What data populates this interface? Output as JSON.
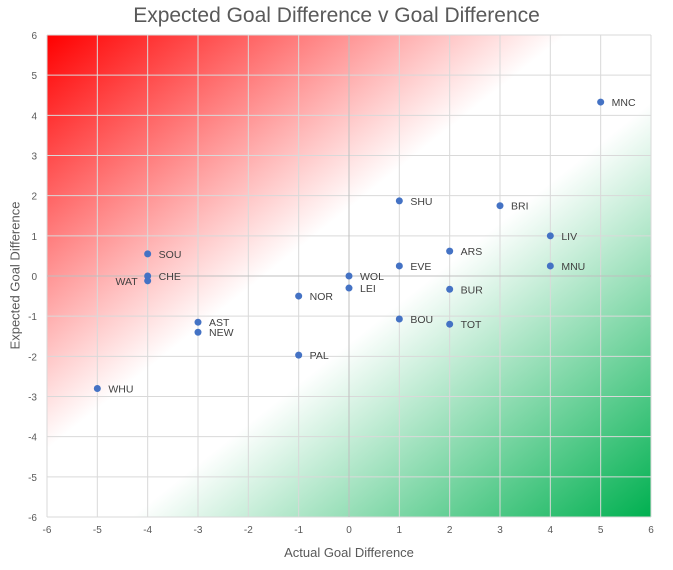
{
  "chart_data": {
    "type": "scatter",
    "title": "Expected Goal Difference v Goal Difference",
    "xlabel": "Actual Goal Difference",
    "ylabel": "Expected Goal Difference",
    "xlim": [
      -6,
      6
    ],
    "ylim": [
      -6,
      6
    ],
    "xticks": [
      -6,
      -5,
      -4,
      -3,
      -2,
      -1,
      0,
      1,
      2,
      3,
      4,
      5,
      6
    ],
    "yticks": [
      -6,
      -5,
      -4,
      -3,
      -2,
      -1,
      0,
      1,
      2,
      3,
      4,
      5,
      6
    ],
    "grid": true,
    "background_gradient": {
      "over_color": "#ff0000",
      "under_color": "#00b050"
    },
    "marker_color": "#4472c4",
    "points": [
      {
        "label": "MNC",
        "x": 5,
        "y": 4.33
      },
      {
        "label": "SHU",
        "x": 1,
        "y": 1.87
      },
      {
        "label": "BRI",
        "x": 3,
        "y": 1.75
      },
      {
        "label": "LIV",
        "x": 4,
        "y": 1.0
      },
      {
        "label": "SOU",
        "x": -4,
        "y": 0.55
      },
      {
        "label": "ARS",
        "x": 2,
        "y": 0.62
      },
      {
        "label": "MNU",
        "x": 4,
        "y": 0.25
      },
      {
        "label": "EVE",
        "x": 1,
        "y": 0.25
      },
      {
        "label": "CHE",
        "x": -4,
        "y": 0.0
      },
      {
        "label": "WOL",
        "x": 0,
        "y": 0.0
      },
      {
        "label": "WAT",
        "x": -4,
        "y": -0.12
      },
      {
        "label": "LEI",
        "x": 0,
        "y": -0.3
      },
      {
        "label": "BUR",
        "x": 2,
        "y": -0.33
      },
      {
        "label": "NOR",
        "x": -1,
        "y": -0.5
      },
      {
        "label": "BOU",
        "x": 1,
        "y": -1.07
      },
      {
        "label": "AST",
        "x": -3,
        "y": -1.15
      },
      {
        "label": "TOT",
        "x": 2,
        "y": -1.2
      },
      {
        "label": "NEW",
        "x": -3,
        "y": -1.4
      },
      {
        "label": "PAL",
        "x": -1,
        "y": -1.97
      },
      {
        "label": "WHU",
        "x": -5,
        "y": -2.8
      }
    ]
  }
}
